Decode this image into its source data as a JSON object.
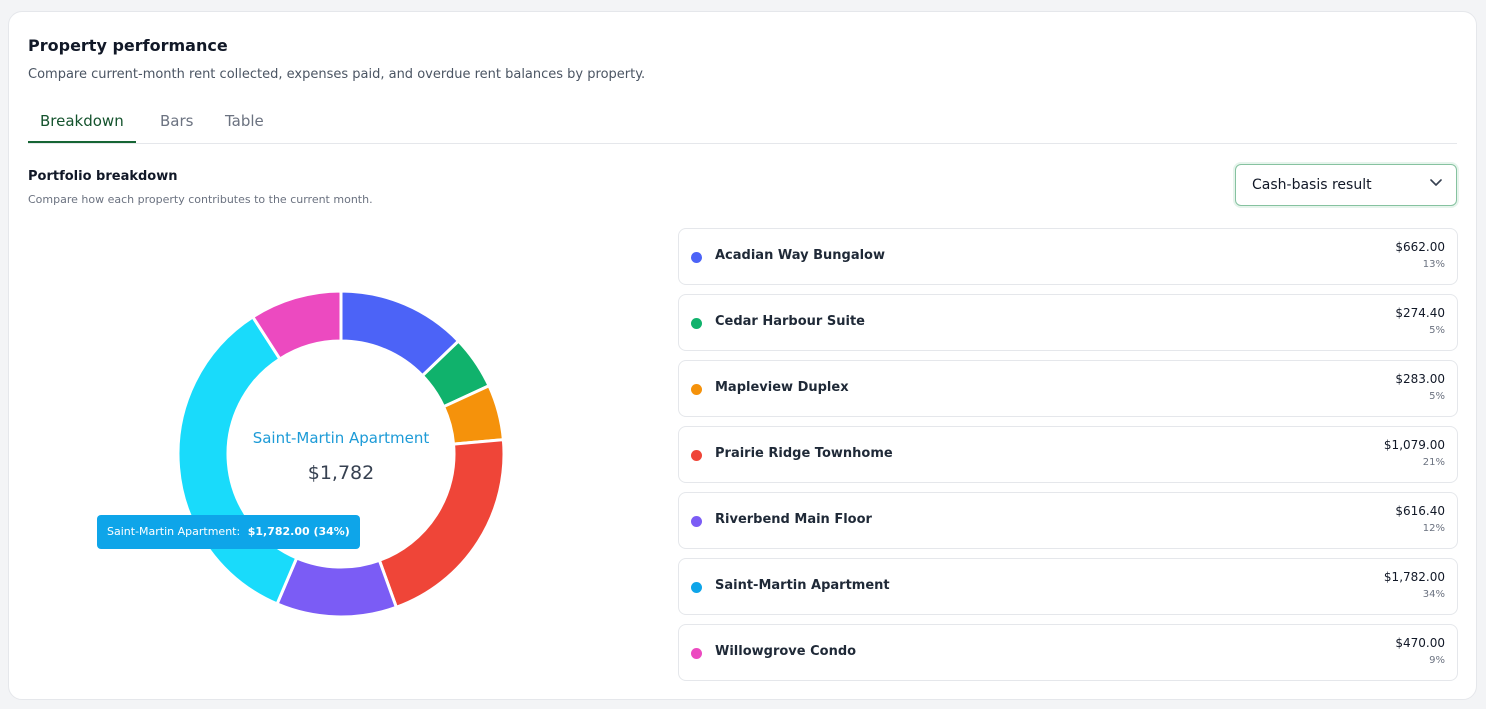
{
  "card": {
    "title": "Property performance",
    "subtitle": "Compare current-month rent collected, expenses paid, and overdue rent balances by property."
  },
  "tabs": [
    {
      "label": "Breakdown",
      "active": true
    },
    {
      "label": "Bars",
      "active": false
    },
    {
      "label": "Table",
      "active": false
    }
  ],
  "section": {
    "title": "Portfolio breakdown",
    "subtitle": "Compare how each property contributes to the current month."
  },
  "metric_select": {
    "value": "Cash-basis result",
    "icon": "chevron-down-icon"
  },
  "donut_center": {
    "name": "Saint-Martin Apartment",
    "value": "$1,782"
  },
  "tooltip": {
    "label": "Saint-Martin Apartment:",
    "value": "$1,782.00 (34%)"
  },
  "colors": {
    "accent": "#166534",
    "highlight": "#0ea5e9"
  },
  "chart_data": {
    "type": "pie",
    "categories": [
      "Acadian Way Bungalow",
      "Cedar Harbour Suite",
      "Mapleview Duplex",
      "Prairie Ridge Townhome",
      "Riverbend Main Floor",
      "Saint-Martin Apartment",
      "Willowgrove Condo"
    ],
    "values": [
      662.0,
      274.4,
      283.0,
      1079.0,
      616.4,
      1782.0,
      470.0
    ],
    "colors": [
      "#4c63f7",
      "#10b26c",
      "#f5920b",
      "#ef4538",
      "#7b5cf5",
      "#19dbfb",
      "#ec4ac0"
    ],
    "highlighted": "Saint-Martin Apartment"
  },
  "properties": [
    {
      "name": "Acadian Way Bungalow",
      "amount": "$662.00",
      "pct": "13%",
      "color": "#4c63f7"
    },
    {
      "name": "Cedar Harbour Suite",
      "amount": "$274.40",
      "pct": "5%",
      "color": "#10b26c"
    },
    {
      "name": "Mapleview Duplex",
      "amount": "$283.00",
      "pct": "5%",
      "color": "#f5920b"
    },
    {
      "name": "Prairie Ridge Townhome",
      "amount": "$1,079.00",
      "pct": "21%",
      "color": "#ef4538"
    },
    {
      "name": "Riverbend Main Floor",
      "amount": "$616.40",
      "pct": "12%",
      "color": "#7b5cf5"
    },
    {
      "name": "Saint-Martin Apartment",
      "amount": "$1,782.00",
      "pct": "34%",
      "color": "#0ea5e9"
    },
    {
      "name": "Willowgrove Condo",
      "amount": "$470.00",
      "pct": "9%",
      "color": "#ec4ac0"
    }
  ]
}
